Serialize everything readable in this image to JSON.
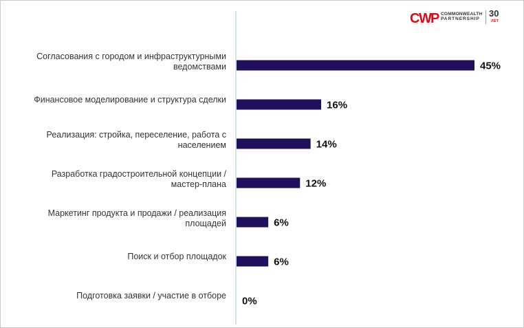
{
  "logo": {
    "line1": "COMMONWEALTH",
    "line2": "PARTNERSHIP",
    "years": "30",
    "years_sub": "ЛЕТ",
    "colors": {
      "red": "#e30613",
      "dark": "#333333"
    }
  },
  "chart_data": {
    "type": "bar",
    "orientation": "horizontal",
    "categories": [
      [
        "Согласования с городом и инфраструктурными",
        "ведомствами"
      ],
      [
        "Финансовое моделирование и структура сделки"
      ],
      [
        "Реализация: стройка, переселение, работа с",
        "населением"
      ],
      [
        "Разработка градостроительной концепции /",
        "мастер-плана"
      ],
      [
        "Маркетинг продукта и продажи / реализация",
        "площадей"
      ],
      [
        "Поиск и отбор площадок"
      ],
      [
        "Подготовка заявки / участие в отборе"
      ]
    ],
    "values": [
      45,
      16,
      14,
      12,
      6,
      6,
      0
    ],
    "value_labels": [
      "45%",
      "16%",
      "14%",
      "12%",
      "6%",
      "6%",
      "0%"
    ],
    "xlim": [
      0,
      45
    ],
    "bar_color": "#1f0f5c",
    "axis_color": "#a9c6d8",
    "grid": false,
    "legend": "none"
  }
}
